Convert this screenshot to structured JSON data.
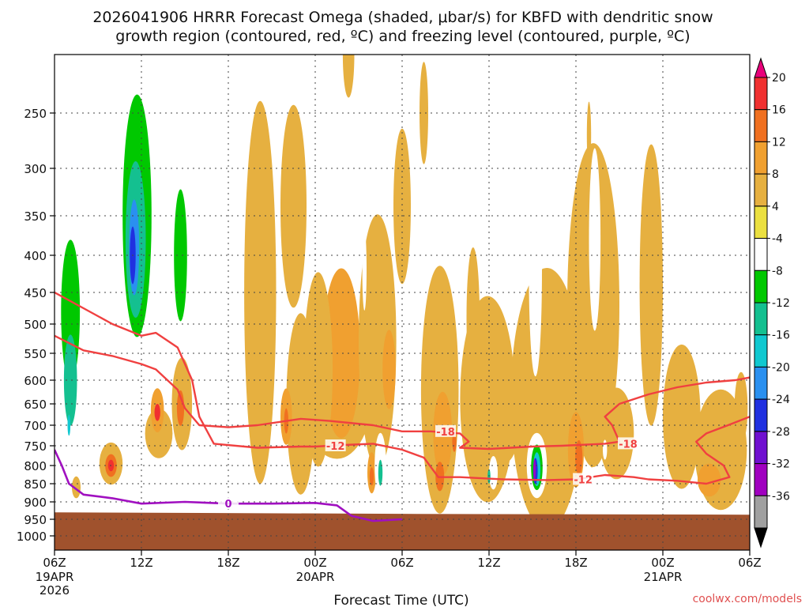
{
  "chart_data": {
    "type": "heatmap",
    "title_line1": "2026041906 HRRR Forecast Omega (shaded, μbar/s) for KBFD with dendritic snow",
    "title_line2": "growth region (contoured, red, ºC) and freezing level (contoured, purple, ºC)",
    "xlabel": "Forecast Time (UTC)",
    "ylabel": "",
    "credit": "coolwx.com/models",
    "x_forecast_hours": [
      0,
      6,
      12,
      18,
      24,
      30,
      36,
      42,
      48,
      54,
      60,
      66,
      72
    ],
    "x_tick_labels": [
      "06Z",
      "12Z",
      "18Z",
      "00Z",
      "06Z",
      "12Z",
      "18Z",
      "00Z",
      "06Z"
    ],
    "x_tick_hours": [
      0,
      6,
      12,
      18,
      24,
      30,
      36,
      42,
      48
    ],
    "x_date_labels": [
      {
        "hour": 0,
        "lines": [
          "19APR",
          "2026"
        ]
      },
      {
        "hour": 18,
        "lines": [
          "20APR"
        ]
      },
      {
        "hour": 42,
        "lines": [
          "21APR"
        ]
      }
    ],
    "xlim": [
      0,
      48
    ],
    "y_pressure_ticks": [
      250,
      300,
      350,
      400,
      450,
      500,
      550,
      600,
      650,
      700,
      750,
      800,
      850,
      900,
      950,
      1000
    ],
    "ylim_hPa": [
      200,
      1050
    ],
    "colorbar_levels": [
      20,
      16,
      12,
      8,
      4,
      -4,
      -8,
      -12,
      -16,
      -20,
      -24,
      -28,
      -32,
      -36
    ],
    "colorbar_colors": [
      "#e8007a",
      "#f03030",
      "#f07020",
      "#f0a030",
      "#e6b040",
      "#ebe040",
      "#ffffff",
      "#00c800",
      "#14c090",
      "#10c8d0",
      "#2a90f0",
      "#2030e0",
      "#7010d0",
      "#a000c0",
      "#a0a0a0",
      "#000000"
    ],
    "omega_regions": [
      {
        "hour": 1.5,
        "p": 330,
        "val": -8,
        "w": 2.2,
        "h": 260
      },
      {
        "hour": 1.2,
        "p": 560,
        "val": -8,
        "w": 1.6,
        "h": 330
      },
      {
        "hour": 1.1,
        "p": 480,
        "val": -12,
        "w": 1.3,
        "h": 220
      },
      {
        "hour": 1.1,
        "p": 600,
        "val": -16,
        "w": 0.9,
        "h": 180
      },
      {
        "hour": 1.0,
        "p": 700,
        "val": -20,
        "w": 0.2,
        "h": 50
      },
      {
        "hour": 5.8,
        "p": 320,
        "val": -8,
        "w": 2.8,
        "h": 380
      },
      {
        "hour": 5.7,
        "p": 350,
        "val": -12,
        "w": 2.0,
        "h": 270
      },
      {
        "hour": 5.6,
        "p": 380,
        "val": -16,
        "w": 1.4,
        "h": 190
      },
      {
        "hour": 5.5,
        "p": 390,
        "val": -24,
        "w": 0.7,
        "h": 120
      },
      {
        "hour": 5.4,
        "p": 400,
        "val": -28,
        "w": 0.4,
        "h": 75
      },
      {
        "hour": 9.0,
        "p": 330,
        "val": -8,
        "w": 1.8,
        "h": 340
      },
      {
        "hour": 8.7,
        "p": 400,
        "val": -12,
        "w": 0.9,
        "h": 170
      },
      {
        "hour": 7.2,
        "p": 720,
        "val": 4,
        "w": 1.9,
        "h": 120
      },
      {
        "hour": 3.9,
        "p": 795,
        "val": 4,
        "w": 1.6,
        "h": 110
      },
      {
        "hour": 3.9,
        "p": 800,
        "val": 12,
        "w": 0.8,
        "h": 60
      },
      {
        "hour": 3.9,
        "p": 800,
        "val": 16,
        "w": 0.4,
        "h": 30
      },
      {
        "hour": 1.5,
        "p": 860,
        "val": 4,
        "w": 0.6,
        "h": 60
      },
      {
        "hour": 7.1,
        "p": 665,
        "val": 8,
        "w": 0.9,
        "h": 100
      },
      {
        "hour": 7.1,
        "p": 670,
        "val": 16,
        "w": 0.4,
        "h": 40
      },
      {
        "hour": 8.8,
        "p": 650,
        "val": 4,
        "w": 1.4,
        "h": 200
      },
      {
        "hour": 8.7,
        "p": 660,
        "val": 12,
        "w": 0.5,
        "h": 80
      },
      {
        "hour": 7.8,
        "p": 830,
        "val": -8,
        "w": 0.9,
        "h": 100
      },
      {
        "hour": 11.4,
        "p": 800,
        "val": -8,
        "w": 0.2,
        "h": 40
      },
      {
        "hour": 14.2,
        "p": 450,
        "val": 4,
        "w": 2.2,
        "h": 560
      },
      {
        "hour": 16.5,
        "p": 340,
        "val": 4,
        "w": 1.8,
        "h": 220
      },
      {
        "hour": 17.0,
        "p": 650,
        "val": 4,
        "w": 2.0,
        "h": 380
      },
      {
        "hour": 19.5,
        "p": 620,
        "val": 4,
        "w": 5.0,
        "h": 280
      },
      {
        "hour": 19.8,
        "p": 550,
        "val": 8,
        "w": 2.6,
        "h": 300
      },
      {
        "hour": 18.2,
        "p": 580,
        "val": 4,
        "w": 2.0,
        "h": 360
      },
      {
        "hour": 16.0,
        "p": 680,
        "val": 8,
        "w": 0.8,
        "h": 130
      },
      {
        "hour": 16.0,
        "p": 690,
        "val": 12,
        "w": 0.3,
        "h": 60
      },
      {
        "hour": 22.3,
        "p": 530,
        "val": 4,
        "w": 2.6,
        "h": 420
      },
      {
        "hour": 23.1,
        "p": 580,
        "val": 8,
        "w": 0.9,
        "h": 150
      },
      {
        "hour": 20.3,
        "p": 200,
        "val": 4,
        "w": 0.8,
        "h": 150
      },
      {
        "hour": 21.9,
        "p": 820,
        "val": 8,
        "w": 0.6,
        "h": 110
      },
      {
        "hour": 21.9,
        "p": 830,
        "val": 12,
        "w": 0.3,
        "h": 50
      },
      {
        "hour": 22.5,
        "p": 800,
        "val": -8,
        "w": 0.8,
        "h": 170
      },
      {
        "hour": 22.5,
        "p": 820,
        "val": -16,
        "w": 0.3,
        "h": 70
      },
      {
        "hour": 21.4,
        "p": 420,
        "val": -8,
        "w": 0.3,
        "h": 110
      },
      {
        "hour": 24.0,
        "p": 340,
        "val": 4,
        "w": 1.2,
        "h": 170
      },
      {
        "hour": 25.5,
        "p": 250,
        "val": 4,
        "w": 0.6,
        "h": 90
      },
      {
        "hour": 26.6,
        "p": 620,
        "val": 4,
        "w": 2.6,
        "h": 480
      },
      {
        "hour": 26.8,
        "p": 720,
        "val": 8,
        "w": 1.3,
        "h": 200
      },
      {
        "hour": 26.6,
        "p": 830,
        "val": 12,
        "w": 0.6,
        "h": 80
      },
      {
        "hour": 27.6,
        "p": 740,
        "val": 12,
        "w": 0.3,
        "h": 50
      },
      {
        "hour": 24.8,
        "p": 380,
        "val": -8,
        "w": 0.3,
        "h": 60
      },
      {
        "hour": 29.9,
        "p": 640,
        "val": 4,
        "w": 3.8,
        "h": 420
      },
      {
        "hour": 28.9,
        "p": 490,
        "val": 4,
        "w": 0.9,
        "h": 220
      },
      {
        "hour": 31.0,
        "p": 700,
        "val": 4,
        "w": 2.2,
        "h": 180
      },
      {
        "hour": 30.3,
        "p": 820,
        "val": -8,
        "w": 0.6,
        "h": 90
      },
      {
        "hour": 30.0,
        "p": 830,
        "val": -16,
        "w": 0.2,
        "h": 40
      },
      {
        "hour": 30.4,
        "p": 350,
        "val": -8,
        "w": 0.3,
        "h": 80
      },
      {
        "hour": 34.0,
        "p": 640,
        "val": 4,
        "w": 5.0,
        "h": 520
      },
      {
        "hour": 33.2,
        "p": 420,
        "val": -8,
        "w": 0.9,
        "h": 280
      },
      {
        "hour": 33.3,
        "p": 800,
        "val": -8,
        "w": 1.4,
        "h": 170
      },
      {
        "hour": 33.3,
        "p": 805,
        "val": -12,
        "w": 0.8,
        "h": 120
      },
      {
        "hour": 33.3,
        "p": 810,
        "val": -20,
        "w": 0.5,
        "h": 90
      },
      {
        "hour": 33.2,
        "p": 815,
        "val": -28,
        "w": 0.32,
        "h": 70
      },
      {
        "hour": 33.15,
        "p": 810,
        "val": -36,
        "w": 0.16,
        "h": 55
      },
      {
        "hour": 37.2,
        "p": 470,
        "val": 4,
        "w": 3.6,
        "h": 460
      },
      {
        "hour": 37.3,
        "p": 380,
        "val": -8,
        "w": 0.8,
        "h": 220
      },
      {
        "hour": 38.8,
        "p": 720,
        "val": 4,
        "w": 2.4,
        "h": 220
      },
      {
        "hour": 36.0,
        "p": 760,
        "val": 8,
        "w": 1.1,
        "h": 190
      },
      {
        "hour": 36.2,
        "p": 780,
        "val": 12,
        "w": 0.5,
        "h": 90
      },
      {
        "hour": 38.0,
        "p": 760,
        "val": -8,
        "w": 0.3,
        "h": 50
      },
      {
        "hour": 37.1,
        "p": 770,
        "val": 4,
        "w": 0.5,
        "h": 70
      },
      {
        "hour": 36.9,
        "p": 270,
        "val": 4,
        "w": 0.3,
        "h": 60
      },
      {
        "hour": 40.0,
        "p": 420,
        "val": -8,
        "w": 0.3,
        "h": 140
      },
      {
        "hour": 41.2,
        "p": 440,
        "val": 4,
        "w": 1.6,
        "h": 380
      },
      {
        "hour": 42.5,
        "p": 420,
        "val": -8,
        "w": 0.4,
        "h": 90
      },
      {
        "hour": 44.0,
        "p": 430,
        "val": -8,
        "w": 0.3,
        "h": 110
      },
      {
        "hour": 43.3,
        "p": 680,
        "val": 4,
        "w": 2.6,
        "h": 320
      },
      {
        "hour": 46.0,
        "p": 760,
        "val": 4,
        "w": 3.6,
        "h": 300
      },
      {
        "hour": 45.2,
        "p": 840,
        "val": 8,
        "w": 1.6,
        "h": 90
      },
      {
        "hour": 47.4,
        "p": 660,
        "val": 4,
        "w": 0.9,
        "h": 160
      }
    ],
    "red_contours": [
      {
        "label": "-12",
        "label_hour": 19.4,
        "label_p": 750,
        "points": [
          [
            0,
            450
          ],
          [
            2,
            475
          ],
          [
            4,
            500
          ],
          [
            6,
            520
          ],
          [
            7,
            515
          ],
          [
            8.5,
            540
          ],
          [
            9.5,
            600
          ],
          [
            10,
            680
          ],
          [
            11,
            745
          ],
          [
            14,
            755
          ],
          [
            17,
            752
          ],
          [
            18,
            752
          ],
          [
            20,
            748
          ],
          [
            22,
            745
          ],
          [
            24,
            760
          ],
          [
            25.5,
            780
          ],
          [
            26.5,
            832
          ],
          [
            28,
            832
          ],
          [
            31,
            838
          ],
          [
            34,
            840
          ],
          [
            36,
            838
          ],
          [
            38,
            826
          ],
          [
            40,
            832
          ],
          [
            41,
            838
          ],
          [
            43,
            842
          ],
          [
            45,
            850
          ],
          [
            46.6,
            832
          ],
          [
            46.2,
            800
          ],
          [
            45,
            770
          ],
          [
            44.3,
            740
          ],
          [
            45,
            720
          ],
          [
            46.5,
            700
          ],
          [
            48,
            680
          ]
        ]
      },
      {
        "label": "-18",
        "label_hour": 27.0,
        "label_p": 715,
        "points": [
          [
            0,
            520
          ],
          [
            2,
            545
          ],
          [
            4,
            555
          ],
          [
            6,
            570
          ],
          [
            7,
            580
          ],
          [
            8.5,
            620
          ],
          [
            9,
            660
          ],
          [
            10,
            700
          ],
          [
            12,
            705
          ],
          [
            14,
            700
          ],
          [
            17,
            685
          ],
          [
            19,
            690
          ],
          [
            22,
            700
          ],
          [
            24,
            715
          ],
          [
            26,
            715
          ],
          [
            28,
            720
          ],
          [
            28.6,
            740
          ],
          [
            28,
            755
          ],
          [
            30,
            758
          ],
          [
            33,
            752
          ],
          [
            35,
            750
          ],
          [
            38,
            745
          ],
          [
            39,
            740
          ],
          [
            38.5,
            700
          ],
          [
            38,
            680
          ],
          [
            39,
            650
          ],
          [
            41,
            630
          ],
          [
            43,
            615
          ],
          [
            45,
            605
          ],
          [
            47,
            600
          ],
          [
            48,
            595
          ]
        ]
      }
    ],
    "red_label_extra": {
      "label": "-12",
      "hour": 36.5,
      "p": 838
    },
    "red_label_extra2": {
      "label": "-18",
      "hour": 39.6,
      "p": 745
    },
    "purple_contour": {
      "label": "0",
      "label_hour": 12.0,
      "label_p": 905,
      "points": [
        [
          0,
          760
        ],
        [
          0.5,
          800
        ],
        [
          1,
          850
        ],
        [
          2,
          880
        ],
        [
          4,
          890
        ],
        [
          6,
          905
        ],
        [
          9,
          900
        ],
        [
          12,
          905
        ],
        [
          15,
          905
        ],
        [
          18,
          903
        ],
        [
          19.5,
          910
        ],
        [
          20.5,
          940
        ],
        [
          22,
          955
        ],
        [
          24,
          950
        ]
      ]
    },
    "terrain_top_hPa": 930
  }
}
